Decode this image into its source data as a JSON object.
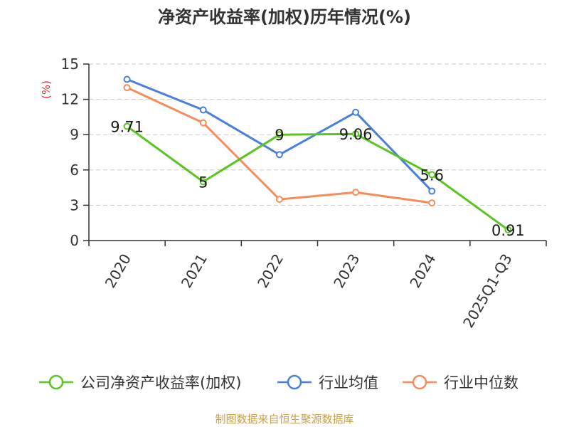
{
  "source": "制图数据来自恒生聚源数据库",
  "chart_data": {
    "type": "line",
    "title": "净资产收益率(加权)历年情况(%)",
    "ylabel": "(%)",
    "xlabel": "",
    "categories": [
      "2020",
      "2021",
      "2022",
      "2023",
      "2024",
      "2025Q1-Q3"
    ],
    "ylim": [
      0,
      15
    ],
    "yticks": [
      0,
      3,
      6,
      9,
      12,
      15
    ],
    "grid": true,
    "legend_position": "bottom",
    "series": [
      {
        "name": "公司净资产收益率(加权)",
        "color": "#5cc421",
        "values": [
          9.71,
          5,
          9,
          9.06,
          5.6,
          0.91
        ],
        "labels": [
          "9.71",
          "5",
          "9",
          "9.06",
          "5.6",
          "0.91"
        ]
      },
      {
        "name": "行业均值",
        "color": "#4a7fdb",
        "values": [
          13.7,
          11.1,
          7.3,
          10.9,
          4.2,
          null
        ]
      },
      {
        "name": "行业中位数",
        "color": "#f58d5a",
        "values": [
          13.0,
          10.0,
          3.5,
          4.1,
          3.2,
          null
        ]
      }
    ]
  }
}
